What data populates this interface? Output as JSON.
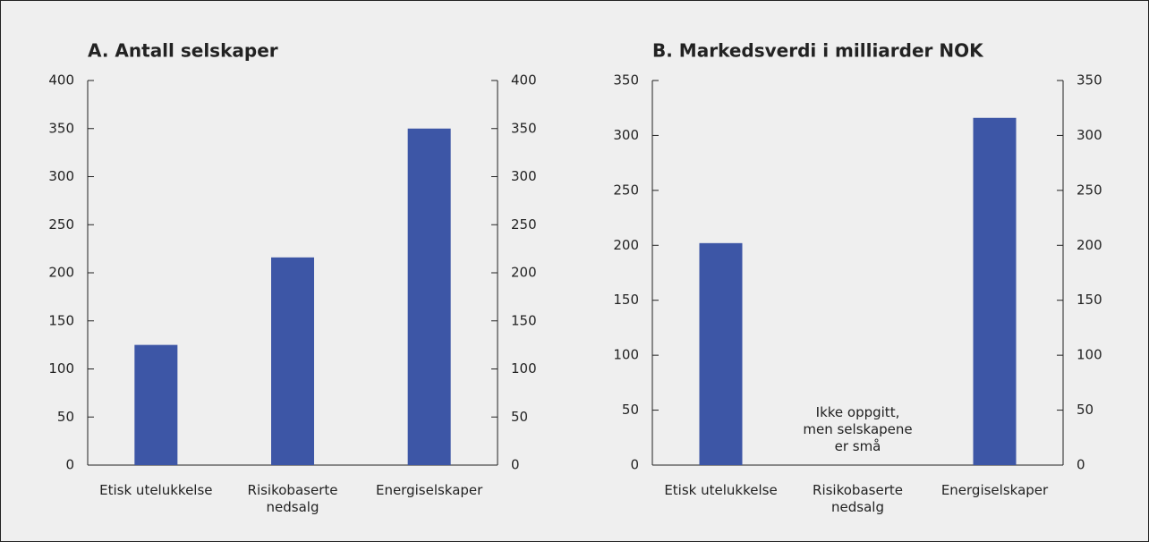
{
  "chart_data": [
    {
      "type": "bar",
      "title": "A.  Antall selskaper",
      "categories": [
        "Etisk utelukkelse",
        "Risikobaserte nedsalg",
        "Energiselskaper"
      ],
      "values": [
        125,
        216,
        350
      ],
      "color": "#3d56a6",
      "ylim": [
        0,
        400
      ],
      "yticks": [
        0,
        50,
        100,
        150,
        200,
        250,
        300,
        350,
        400
      ]
    },
    {
      "type": "bar",
      "title": "B.  Markedsverdi i milliarder NOK",
      "categories": [
        "Etisk utelukkelse",
        "Risikobaserte nedsalg",
        "Energiselskaper"
      ],
      "values": [
        202,
        null,
        316
      ],
      "color": "#3d56a6",
      "ylim": [
        0,
        350
      ],
      "yticks": [
        0,
        50,
        100,
        150,
        200,
        250,
        300,
        350
      ],
      "annotation": "Ikke oppgitt, men selskapene er små"
    }
  ]
}
